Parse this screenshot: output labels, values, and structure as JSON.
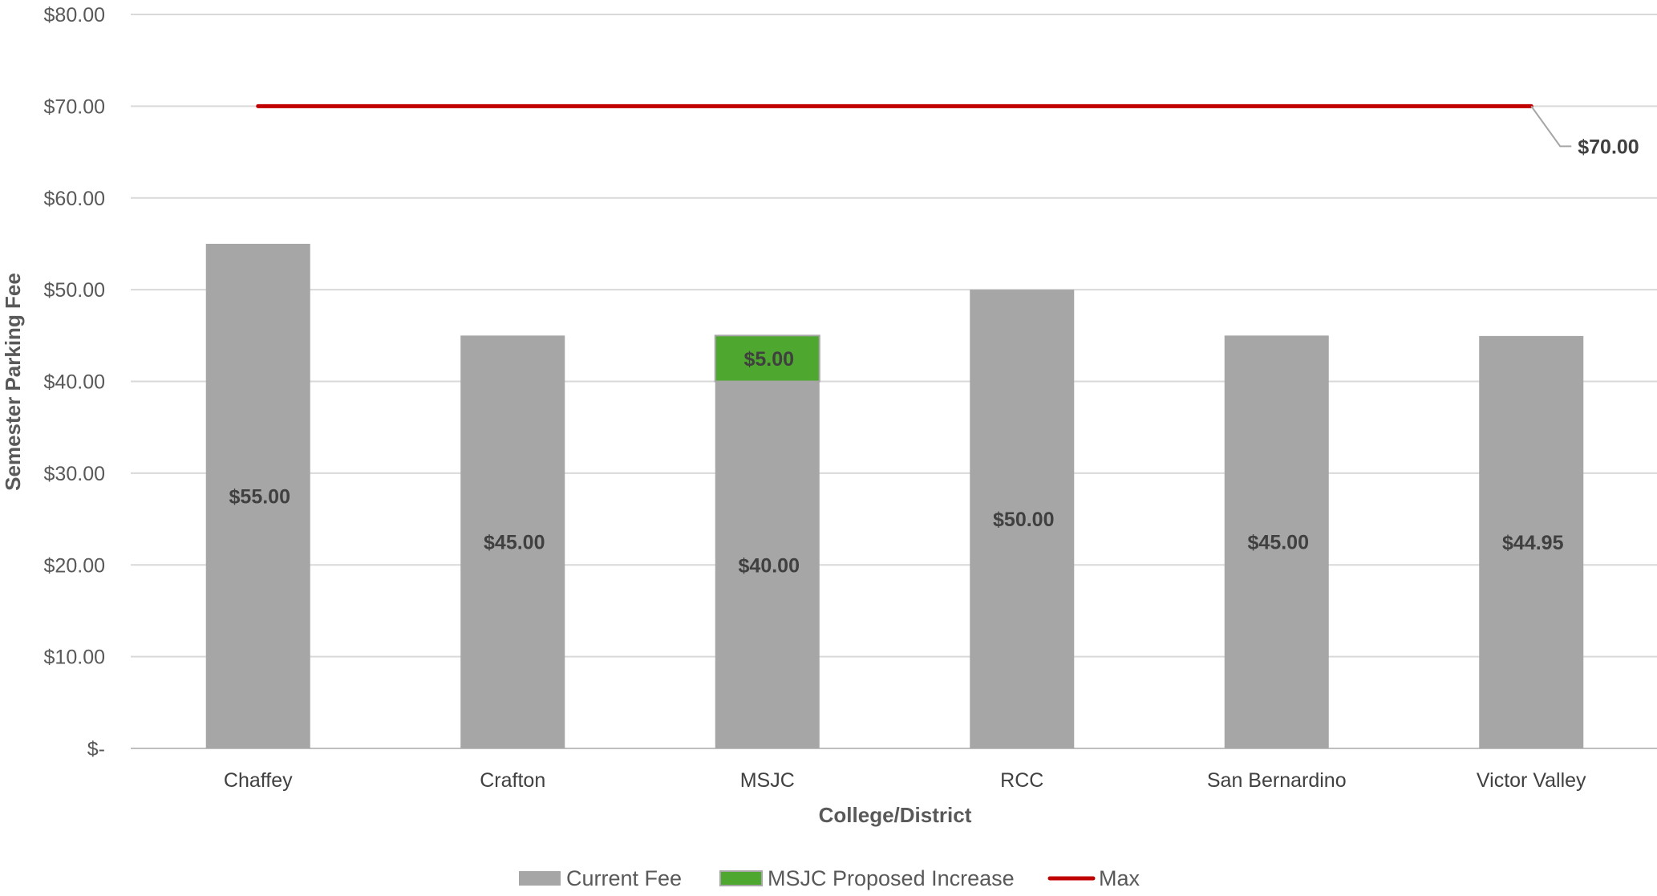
{
  "chart_data": {
    "type": "bar",
    "stacked": true,
    "categories": [
      "Chaffey",
      "Crafton",
      "MSJC",
      "RCC",
      "San Bernardino",
      "Victor Valley"
    ],
    "series": [
      {
        "name": "Current Fee",
        "type": "bar",
        "color": "#A6A6A6",
        "values": [
          55.0,
          45.0,
          40.0,
          50.0,
          45.0,
          44.95
        ],
        "labels": [
          "$55.00",
          "$45.00",
          "$40.00",
          "$50.00",
          "$45.00",
          "$44.95"
        ]
      },
      {
        "name": "MSJC Proposed Increase",
        "type": "bar",
        "color": "#4EA72E",
        "values": [
          0,
          0,
          5.0,
          0,
          0,
          0
        ],
        "labels": [
          "",
          "",
          "$5.00",
          "",
          "",
          ""
        ]
      },
      {
        "name": "Max",
        "type": "line",
        "color": "#C00000",
        "values": [
          70,
          70,
          70,
          70,
          70,
          70
        ],
        "end_label": "$70.00"
      }
    ],
    "xlabel": "College/District",
    "ylabel": "Semester Parking Fee",
    "ylim": [
      0,
      80
    ],
    "yticks": [
      0,
      10,
      20,
      30,
      40,
      50,
      60,
      70,
      80
    ],
    "ytick_labels": [
      "$-",
      "$10.00",
      "$20.00",
      "$30.00",
      "$40.00",
      "$50.00",
      "$60.00",
      "$70.00",
      "$80.00"
    ],
    "grid": true,
    "legend": "bottom"
  }
}
